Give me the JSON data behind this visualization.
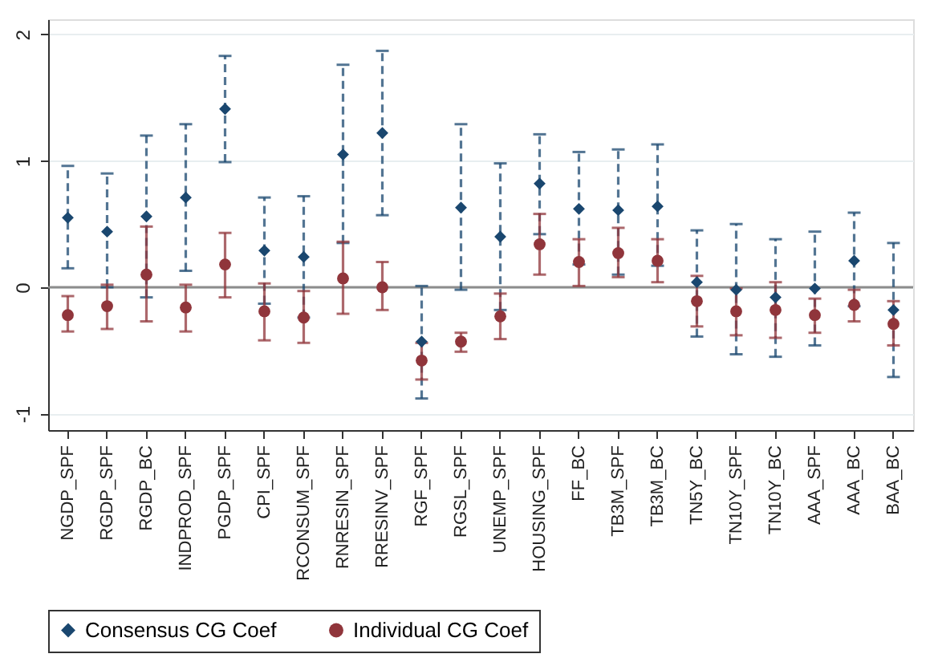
{
  "chart_data": {
    "type": "scatter",
    "categories": [
      "NGDP_SPF",
      "RGDP_SPF",
      "RGDP_BC",
      "INDPROD_SPF",
      "PGDP_SPF",
      "CPI_SPF",
      "RCONSUM_SPF",
      "RNRESIN_SPF",
      "RRESINV_SPF",
      "RGF_SPF",
      "RGSL_SPF",
      "UNEMP_SPF",
      "HOUSING_SPF",
      "FF_BC",
      "TB3M_SPF",
      "TB3M_BC",
      "TN5Y_BC",
      "TN10Y_SPF",
      "TN10Y_BC",
      "AAA_SPF",
      "AAA_BC",
      "BAA_BC"
    ],
    "series": [
      {
        "name": "Consensus CG Coef",
        "color": "#1a476f",
        "marker": "diamond",
        "line_style": "dashed",
        "values": [
          0.55,
          0.44,
          0.56,
          0.71,
          1.41,
          0.29,
          0.24,
          1.05,
          1.22,
          -0.43,
          0.63,
          0.4,
          0.82,
          0.62,
          0.61,
          0.64,
          0.04,
          -0.02,
          -0.08,
          -0.01,
          0.21,
          -0.18
        ],
        "errors": [
          [
            0.15,
            0.96
          ],
          [
            0.0,
            0.9
          ],
          [
            -0.08,
            1.2
          ],
          [
            0.13,
            1.29
          ],
          [
            0.99,
            1.83
          ],
          [
            -0.13,
            0.71
          ],
          [
            -0.24,
            0.72
          ],
          [
            0.35,
            1.76
          ],
          [
            0.57,
            1.87
          ],
          [
            -0.88,
            0.01
          ],
          [
            -0.02,
            1.29
          ],
          [
            -0.18,
            0.98
          ],
          [
            0.42,
            1.21
          ],
          [
            0.18,
            1.07
          ],
          [
            0.1,
            1.09
          ],
          [
            0.17,
            1.13
          ],
          [
            -0.39,
            0.45
          ],
          [
            -0.53,
            0.5
          ],
          [
            -0.55,
            0.38
          ],
          [
            -0.46,
            0.44
          ],
          [
            -0.15,
            0.59
          ],
          [
            -0.71,
            0.35
          ]
        ]
      },
      {
        "name": "Individual CG Coef",
        "color": "#90353b",
        "marker": "circle",
        "line_style": "solid",
        "values": [
          -0.22,
          -0.15,
          0.1,
          -0.16,
          0.18,
          -0.19,
          -0.24,
          0.07,
          0.0,
          -0.58,
          -0.43,
          -0.23,
          0.34,
          0.2,
          0.27,
          0.21,
          -0.11,
          -0.19,
          -0.18,
          -0.22,
          -0.14,
          -0.29
        ],
        "errors": [
          [
            -0.35,
            -0.07
          ],
          [
            -0.33,
            0.02
          ],
          [
            -0.27,
            0.48
          ],
          [
            -0.35,
            0.02
          ],
          [
            -0.08,
            0.43
          ],
          [
            -0.42,
            0.03
          ],
          [
            -0.44,
            -0.03
          ],
          [
            -0.21,
            0.36
          ],
          [
            -0.18,
            0.2
          ],
          [
            -0.73,
            -0.44
          ],
          [
            -0.51,
            -0.36
          ],
          [
            -0.41,
            -0.05
          ],
          [
            0.1,
            0.58
          ],
          [
            0.01,
            0.38
          ],
          [
            0.08,
            0.47
          ],
          [
            0.04,
            0.38
          ],
          [
            -0.31,
            0.09
          ],
          [
            -0.38,
            -0.01
          ],
          [
            -0.4,
            0.04
          ],
          [
            -0.36,
            -0.09
          ],
          [
            -0.27,
            -0.02
          ],
          [
            -0.46,
            -0.11
          ]
        ]
      }
    ],
    "ylim": [
      -1.13,
      2.12
    ],
    "yticks": [
      -1,
      0,
      1,
      2
    ],
    "grid": "y",
    "ref_lines": [
      {
        "axis": "y",
        "value": 0,
        "color": "#8c8c8c"
      }
    ],
    "legend": "bottom"
  }
}
